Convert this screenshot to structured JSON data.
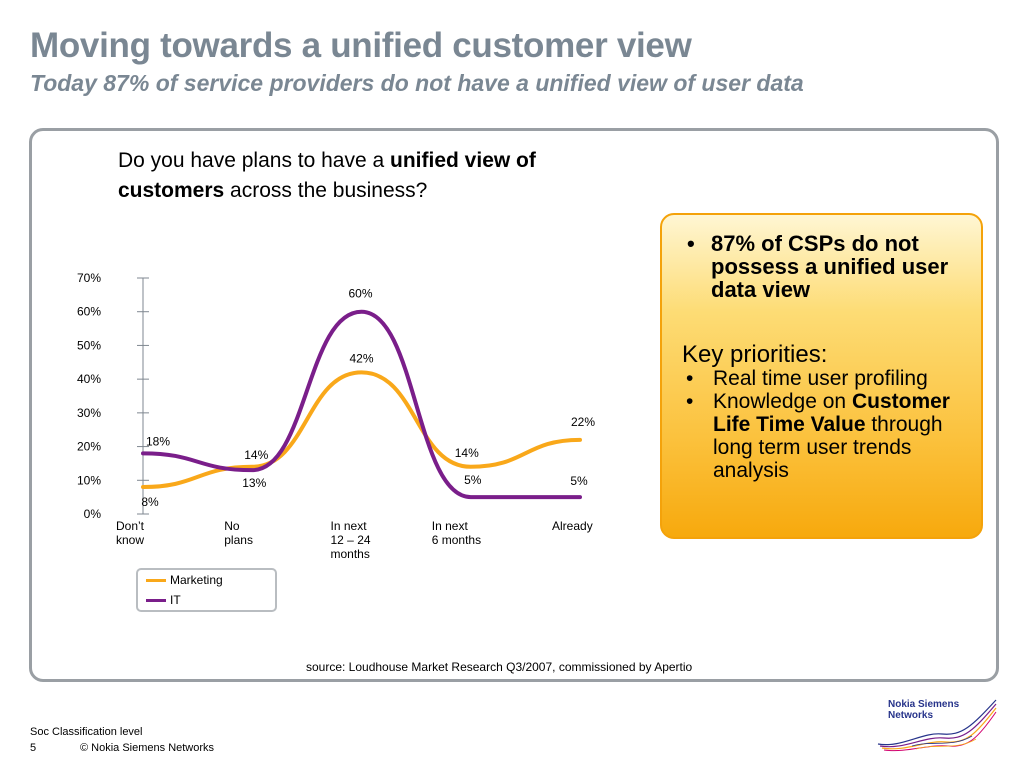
{
  "slide": {
    "title": "Moving towards a unified customer view",
    "subtitle": "Today 87% of service providers do not have a unified view of user data"
  },
  "question": {
    "part1": "Do you have plans to have a ",
    "bold": "unified view of customers",
    "part2": " across the business?"
  },
  "callout": {
    "bullet_char": "•",
    "headline": "87% of CSPs do not possess a unified user data view",
    "key_priorities_label": "Key priorities:",
    "items": [
      {
        "pre": "Real time user profiling",
        "bold": "",
        "post": ""
      },
      {
        "pre": "Knowledge on ",
        "bold": "Customer Life Time Value",
        "post": " through long term user trends analysis"
      }
    ]
  },
  "chart_data": {
    "type": "line",
    "categories": [
      "Don’t know",
      "No plans",
      "In next 12 – 24 months",
      "In next 6 months",
      "Already"
    ],
    "series": [
      {
        "name": "Marketing",
        "values": [
          8,
          14,
          42,
          14,
          22
        ],
        "labels": [
          "8%",
          "14%",
          "42%",
          "14%",
          "22%"
        ],
        "color": "#f9a81a"
      },
      {
        "name": "IT",
        "values": [
          18,
          13,
          60,
          5,
          5
        ],
        "labels": [
          "18%",
          "13%",
          "60%",
          "5%",
          "5%"
        ],
        "color": "#7a1e8a"
      }
    ],
    "y_ticks": [
      "0%",
      "10%",
      "20%",
      "30%",
      "40%",
      "50%",
      "60%",
      "70%"
    ],
    "ylim": [
      0,
      70
    ],
    "smooth": true,
    "grid": false,
    "legend_position": "bottom-left"
  },
  "legend": {
    "marketing": "Marketing",
    "it": "IT"
  },
  "source": "source: Loudhouse Market Research Q3/2007, commissioned by Apertio",
  "footer": {
    "classification": "Soc Classification level",
    "page": "5",
    "copyright": "© Nokia Siemens Networks"
  },
  "logo": {
    "line1": "Nokia Siemens",
    "line2": "Networks",
    "colors": [
      "#27348b",
      "#f9a81a",
      "#7a1e8a"
    ]
  }
}
